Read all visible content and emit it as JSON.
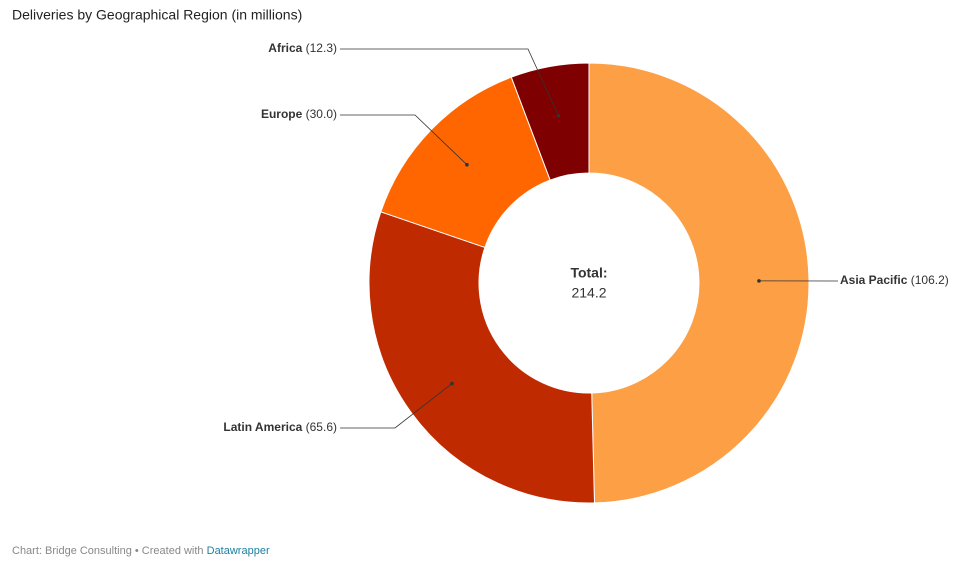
{
  "chart_data": {
    "type": "donut",
    "title": "Deliveries by Geographical Region (in millions)",
    "categories": [
      "Asia Pacific",
      "Latin America",
      "Europe",
      "Africa"
    ],
    "values": [
      106.2,
      65.6,
      30.0,
      12.3
    ],
    "value_labels": [
      "(106.2)",
      "(65.6)",
      "(30.0)",
      "(12.3)"
    ],
    "colors": [
      "#fd9f45",
      "#c02a00",
      "#ff6600",
      "#7f0000"
    ],
    "center_label": "Total:",
    "total": 214.2
  },
  "footer": {
    "text": "Chart: Bridge Consulting • Created with",
    "link": "Datawrapper"
  }
}
